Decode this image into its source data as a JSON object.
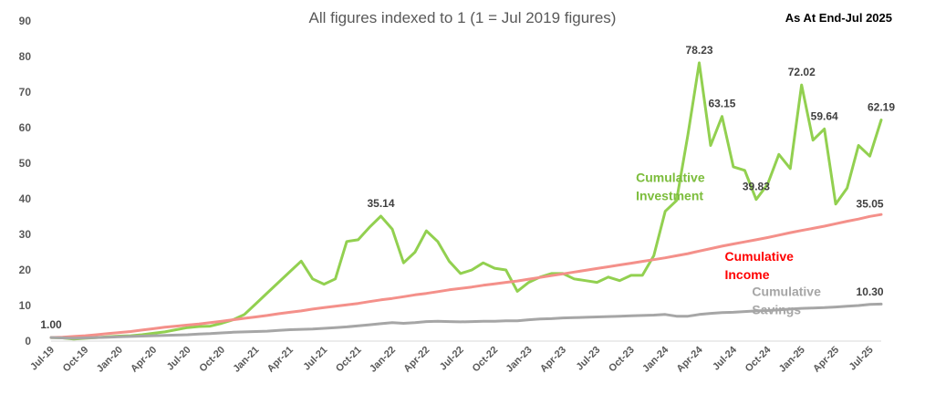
{
  "chart_data": {
    "type": "line",
    "title": "All figures indexed to 1 (1 = Jul 2019 figures)",
    "note": "As At End-Jul 2025",
    "ylim": [
      0,
      90
    ],
    "yticks": [
      0,
      10,
      20,
      30,
      40,
      50,
      60,
      70,
      80,
      90
    ],
    "x_tick_labels": [
      "Jul-19",
      "Oct-19",
      "Jan-20",
      "Apr-20",
      "Jul-20",
      "Oct-20",
      "Jan-21",
      "Apr-21",
      "Jul-21",
      "Oct-21",
      "Jan-22",
      "Apr-22",
      "Jul-22",
      "Oct-22",
      "Jan-23",
      "Apr-23",
      "Jul-23",
      "Oct-23",
      "Jan-24",
      "Apr-24",
      "Jul-24",
      "Oct-24",
      "Jan-25",
      "Apr-25",
      "Jul-25"
    ],
    "grid": false,
    "series": [
      {
        "name": "Cumulative Investment",
        "color": "#92d050",
        "values": [
          1.0,
          0.9,
          0.6,
          0.8,
          1.0,
          1.2,
          1.4,
          1.5,
          1.8,
          2.2,
          2.6,
          3.2,
          3.8,
          4.1,
          4.2,
          5.0,
          6.0,
          7.5,
          10.5,
          13.5,
          16.5,
          19.5,
          22.5,
          17.5,
          16.0,
          17.5,
          28.0,
          28.5,
          32.0,
          35.14,
          31.5,
          22.0,
          25.0,
          31.0,
          28.0,
          22.5,
          19.0,
          20.0,
          22.0,
          20.5,
          20.0,
          14.0,
          16.5,
          18.0,
          19.0,
          19.0,
          17.5,
          17.0,
          16.5,
          18.0,
          17.0,
          18.5,
          18.5,
          24.0,
          36.5,
          39.5,
          58.0,
          78.23,
          55.0,
          63.15,
          49.0,
          48.0,
          39.83,
          44.0,
          52.5,
          48.5,
          72.02,
          56.5,
          59.64,
          38.5,
          43.0,
          55.0,
          52.0,
          62.19
        ]
      },
      {
        "name": "Cumulative Income",
        "color": "#f4908a",
        "values": [
          1.0,
          1.1,
          1.3,
          1.5,
          1.8,
          2.1,
          2.4,
          2.7,
          3.1,
          3.5,
          3.9,
          4.2,
          4.5,
          4.8,
          5.2,
          5.6,
          6.0,
          6.4,
          6.8,
          7.2,
          7.7,
          8.1,
          8.5,
          9.0,
          9.4,
          9.8,
          10.2,
          10.6,
          11.1,
          11.6,
          12.0,
          12.5,
          13.0,
          13.4,
          13.9,
          14.4,
          14.8,
          15.2,
          15.7,
          16.1,
          16.5,
          16.9,
          17.4,
          17.9,
          18.4,
          18.9,
          19.4,
          19.9,
          20.4,
          20.9,
          21.4,
          21.9,
          22.4,
          22.9,
          23.4,
          24.0,
          24.6,
          25.3,
          26.0,
          26.7,
          27.3,
          27.9,
          28.5,
          29.1,
          29.8,
          30.5,
          31.1,
          31.7,
          32.3,
          33.0,
          33.7,
          34.3,
          35.05,
          35.6
        ]
      },
      {
        "name": "Cumulative Savings",
        "color": "#a6a6a6",
        "values": [
          1.0,
          0.9,
          0.8,
          0.9,
          1.0,
          1.1,
          1.2,
          1.3,
          1.4,
          1.5,
          1.6,
          1.7,
          1.8,
          2.0,
          2.1,
          2.3,
          2.5,
          2.6,
          2.7,
          2.8,
          3.0,
          3.2,
          3.3,
          3.4,
          3.6,
          3.8,
          4.0,
          4.3,
          4.6,
          4.9,
          5.2,
          5.0,
          5.2,
          5.5,
          5.6,
          5.5,
          5.4,
          5.5,
          5.6,
          5.6,
          5.7,
          5.7,
          6.0,
          6.2,
          6.3,
          6.5,
          6.6,
          6.7,
          6.8,
          6.9,
          7.0,
          7.1,
          7.2,
          7.3,
          7.5,
          7.0,
          7.0,
          7.5,
          7.8,
          8.0,
          8.1,
          8.3,
          8.5,
          8.6,
          8.8,
          9.0,
          9.2,
          9.3,
          9.4,
          9.6,
          9.8,
          10.0,
          10.3,
          10.4
        ]
      }
    ],
    "data_labels": [
      {
        "series": 0,
        "index": 0,
        "text": "1.00"
      },
      {
        "series": 0,
        "index": 29,
        "text": "35.14"
      },
      {
        "series": 0,
        "index": 57,
        "text": "78.23"
      },
      {
        "series": 0,
        "index": 59,
        "text": "63.15"
      },
      {
        "series": 0,
        "index": 62,
        "text": "39.83"
      },
      {
        "series": 0,
        "index": 66,
        "text": "72.02"
      },
      {
        "series": 0,
        "index": 68,
        "text": "59.64"
      },
      {
        "series": 0,
        "index": 73,
        "text": "62.19"
      },
      {
        "series": 1,
        "index": 72,
        "text": "35.05"
      },
      {
        "series": 2,
        "index": 72,
        "text": "10.30"
      }
    ],
    "series_labels": [
      {
        "series": 0,
        "lines": [
          "Cumulative",
          "Investment"
        ],
        "color": "#7cbd3c"
      },
      {
        "series": 1,
        "lines": [
          "Cumulative",
          "Income"
        ],
        "color": "#ff0000"
      },
      {
        "series": 2,
        "lines": [
          "Cumulative",
          "Savings"
        ],
        "color": "#a6a6a6"
      }
    ]
  }
}
